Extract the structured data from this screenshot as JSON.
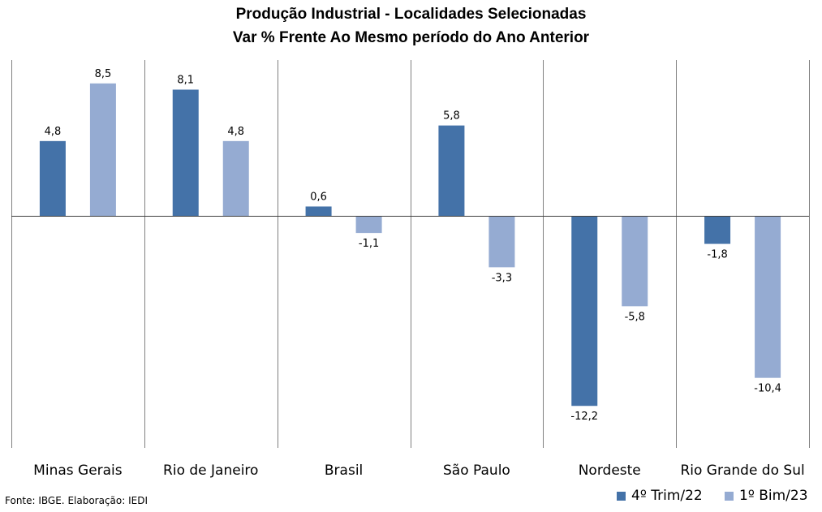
{
  "chart_data": {
    "type": "bar",
    "title": "Produção Industrial - Localidades Selecionadas",
    "subtitle": "Var % Frente Ao Mesmo período do Ano Anterior",
    "categories": [
      "Minas Gerais",
      "Rio de Janeiro",
      "Brasil",
      "São Paulo",
      "Nordeste",
      "Rio Grande do Sul"
    ],
    "series": [
      {
        "name": "4º Trim/22",
        "color": "#4472a8",
        "values": [
          4.8,
          8.1,
          0.6,
          5.8,
          -12.2,
          -1.8
        ],
        "labels": [
          "4,8",
          "8,1",
          "0,6",
          "5,8",
          "-12,2",
          "-1,8"
        ]
      },
      {
        "name": "1º Bim/23",
        "color": "#95abd2",
        "values": [
          8.5,
          4.8,
          -1.1,
          -3.3,
          -5.8,
          -10.4
        ],
        "labels": [
          "8,5",
          "4,8",
          "-1,1",
          "-3,3",
          "-5,8",
          "-10,4"
        ]
      }
    ],
    "ylim": [
      -15,
      10
    ],
    "legend": "bottom-right",
    "grid": false
  },
  "source": "Fonte: IBGE. Elaboração: IEDI"
}
